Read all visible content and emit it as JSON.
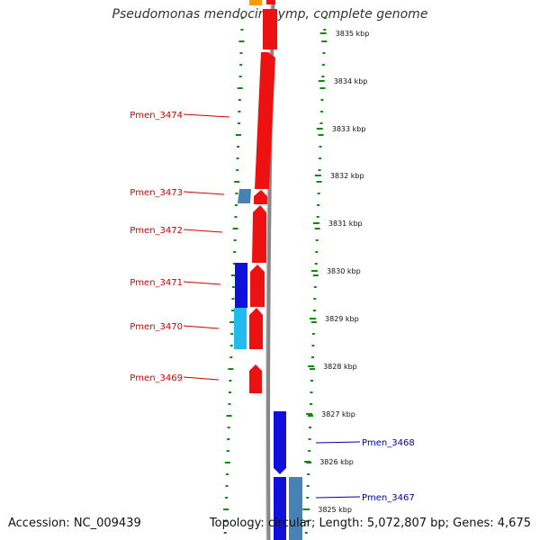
{
  "title": "Pseudomonas mendocina ymp, complete genome",
  "footer": {
    "accession": "Accession: NC_009439",
    "summary": "Topology: circular; Length: 5,072,807 bp; Genes: 4,675"
  },
  "colors": {
    "forward_gene": "#ee1111",
    "reverse_gene": "#1010dd",
    "light_gene": "#22bbee",
    "steel_gene": "#4682b4",
    "orange_gene": "#ff9900",
    "backbone": "#888888",
    "tick": "#118811",
    "label_red": "#cc0000",
    "label_blue": "#0000aa"
  },
  "scale_labels": [
    "3835 kbp",
    "3834 kbp",
    "3833 kbp",
    "3832 kbp",
    "3831 kbp",
    "3830 kbp",
    "3829 kbp",
    "3828 kbp",
    "3827 kbp",
    "3826 kbp",
    "3825 kbp"
  ],
  "gene_labels_left": [
    "Pmen_3474",
    "Pmen_3473",
    "Pmen_3472",
    "Pmen_3471",
    "Pmen_3470",
    "Pmen_3469"
  ],
  "gene_labels_right": [
    "Pmen_3468",
    "Pmen_3467"
  ]
}
